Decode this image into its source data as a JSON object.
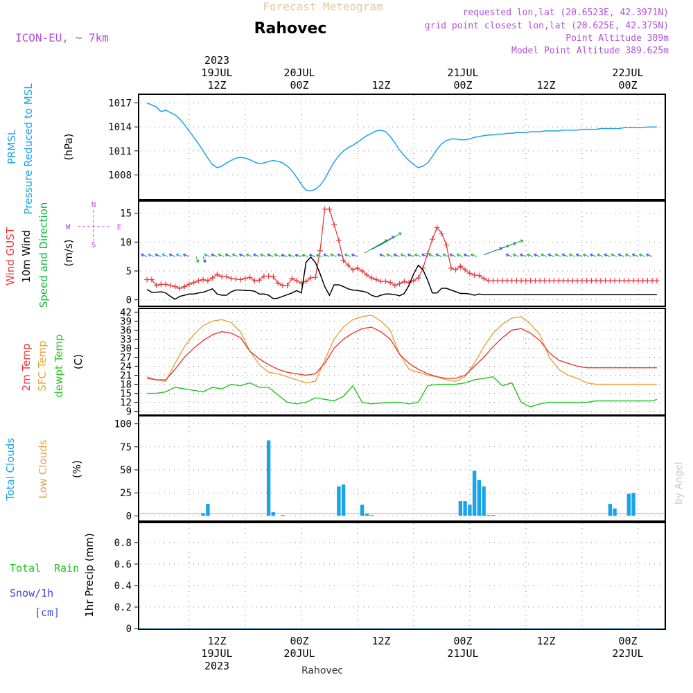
{
  "header": {
    "product": "Forecast Meteogram",
    "location": "Rahovec",
    "model": "ICON-EU, ~ 7km",
    "requested": "requested lon,lat (20.6523E, 42.3971N)",
    "grid_point": "grid point closest lon,lat (20.625E, 42.375N)",
    "point_altitude": "Point Altitude 389m",
    "model_altitude": "Model Point Altitude 389.625m",
    "credit": "by Angel",
    "footer_location": "Rahovec"
  },
  "time_axis": {
    "top_labels": [
      {
        "line1": "2023",
        "line2": "19JUL",
        "line3": "12Z"
      },
      {
        "line1": "",
        "line2": "20JUL",
        "line3": "00Z"
      },
      {
        "line1": "",
        "line2": "",
        "line3": "12Z"
      },
      {
        "line1": "",
        "line2": "21JUL",
        "line3": "00Z"
      },
      {
        "line1": "",
        "line2": "",
        "line3": "12Z"
      },
      {
        "line1": "",
        "line2": "22JUL",
        "line3": "00Z"
      }
    ],
    "bottom_labels": [
      {
        "line1": "12Z",
        "line2": "19JUL",
        "line3": "2023"
      },
      {
        "line1": "00Z",
        "line2": "20JUL",
        "line3": ""
      },
      {
        "line1": "12Z",
        "line2": "",
        "line3": ""
      },
      {
        "line1": "00Z",
        "line2": "21JUL",
        "line3": ""
      },
      {
        "line1": "12Z",
        "line2": "",
        "line3": ""
      },
      {
        "line1": "00Z",
        "line2": "22JUL",
        "line3": ""
      }
    ]
  },
  "colors": {
    "pressure": "#1ba3e8",
    "gust": "#e8383b",
    "wind": "#000000",
    "direction": "#11b53b",
    "temp2m": "#e8383b",
    "sfc_temp": "#e5a33a",
    "dewpt": "#22c322",
    "total_clouds": "#1ba3e8",
    "low_clouds": "#e5a33a",
    "rain": "#22c322",
    "snow": "#3b48e8",
    "header_purple": "#b24fd8",
    "product_title": "#e8c89a"
  },
  "chart_data": [
    {
      "type": "line",
      "panel": "pressure",
      "labels": {
        "a": "PRMSL",
        "b": "Pressure Reduced to MSL",
        "unit": "(hPa)"
      },
      "yticks": [
        1008,
        1011,
        1014,
        1017
      ],
      "ylim": [
        1005.0,
        1018.0
      ],
      "x_hours": [
        -9,
        -7,
        -6,
        -5,
        -4,
        -3,
        -2,
        -1,
        0,
        1,
        2,
        3,
        4,
        5,
        6,
        7,
        8,
        9,
        10,
        11,
        12,
        13,
        14,
        15,
        16,
        17,
        18,
        19,
        20,
        21,
        22,
        23,
        24,
        25,
        26,
        27,
        28,
        29,
        30,
        31,
        32,
        33,
        34,
        35,
        36,
        37,
        38,
        39,
        40,
        41,
        42,
        43,
        44,
        45,
        46,
        47,
        48,
        49,
        50,
        51,
        52,
        53,
        54,
        55,
        56,
        57,
        58,
        59,
        60,
        61,
        62,
        63,
        64,
        65,
        66,
        67,
        68,
        69,
        70,
        71,
        72,
        73,
        74,
        75,
        76,
        77,
        78,
        79,
        80,
        81,
        82,
        83,
        84,
        85,
        86,
        87,
        88,
        89,
        90,
        91,
        92,
        93,
        94,
        95,
        96,
        97,
        98,
        99,
        100
      ],
      "series": [
        {
          "values": [
            1017.0,
            1016.5,
            1015.9,
            1016.1,
            1015.8,
            1015.5,
            1015.0,
            1014.3,
            1013.5,
            1012.7,
            1011.9,
            1011.0,
            1010.1,
            1009.3,
            1008.9,
            1009.1,
            1009.5,
            1009.8,
            1010.1,
            1010.2,
            1010.1,
            1009.9,
            1009.6,
            1009.4,
            1009.5,
            1009.7,
            1009.8,
            1009.7,
            1009.5,
            1009.1,
            1008.5,
            1007.7,
            1006.8,
            1006.1,
            1006.0,
            1006.2,
            1006.7,
            1007.5,
            1008.6,
            1009.6,
            1010.4,
            1011.0,
            1011.4,
            1011.7,
            1012.1,
            1012.5,
            1012.9,
            1013.2,
            1013.5,
            1013.6,
            1013.4,
            1012.8,
            1012.0,
            1011.1,
            1010.4,
            1009.8,
            1009.3,
            1008.9,
            1009.1,
            1009.5,
            1010.3,
            1011.2,
            1011.9,
            1012.3,
            1012.5,
            1012.5,
            1012.4,
            1012.4,
            1012.5,
            1012.7,
            1012.8,
            1012.9,
            1013.0,
            1013.0,
            1013.1,
            1013.1,
            1013.2,
            1013.2,
            1013.3,
            1013.3,
            1013.3,
            1013.4,
            1013.4,
            1013.4,
            1013.5,
            1013.5,
            1013.5,
            1013.5,
            1013.6,
            1013.6,
            1013.6,
            1013.6,
            1013.7,
            1013.7,
            1013.7,
            1013.7,
            1013.8,
            1013.8,
            1013.8,
            1013.8,
            1013.8,
            1013.9,
            1013.9,
            1013.9,
            1013.9,
            1013.9,
            1014.0,
            1014.0,
            1014.0
          ]
        }
      ]
    },
    {
      "type": "line",
      "panel": "wind",
      "labels": {
        "gust": "Wind GUST",
        "wind": "10m Wind",
        "dir": "Speed and Direction",
        "unit": "(m/s)",
        "compass_n": "N",
        "compass_s": "S",
        "compass_w": "W",
        "compass_e": "E"
      },
      "yticks": [
        0,
        5,
        10,
        15
      ],
      "ylim": [
        -1.0,
        17.0
      ],
      "x_hours": [
        -9,
        -8,
        -7,
        -6,
        -5,
        -4,
        -3,
        -2,
        -1,
        0,
        1,
        2,
        3,
        4,
        5,
        6,
        7,
        8,
        9,
        10,
        11,
        12,
        13,
        14,
        15,
        16,
        17,
        18,
        19,
        20,
        21,
        22,
        23,
        24,
        25,
        26,
        27,
        28,
        29,
        30,
        31,
        32,
        33,
        34,
        35,
        36,
        37,
        38,
        39,
        40,
        41,
        42,
        43,
        44,
        45,
        46,
        47,
        48,
        49,
        50,
        51,
        52,
        53,
        54,
        55,
        56,
        57,
        58,
        59,
        60,
        61,
        62,
        63,
        64,
        65,
        66,
        67,
        68,
        69,
        70,
        71,
        72,
        73,
        74,
        75,
        76,
        77,
        78,
        79,
        80,
        81,
        82,
        83,
        84,
        85,
        86,
        87,
        88,
        89,
        90,
        91,
        92,
        93,
        94,
        95,
        96,
        97,
        98,
        99,
        100
      ],
      "series": [
        {
          "name": "Wind GUST",
          "values": [
            3.5,
            3.5,
            2.5,
            2.7,
            2.7,
            2.5,
            2.3,
            2.0,
            2.3,
            2.7,
            3.0,
            3.3,
            3.5,
            3.3,
            3.8,
            4.4,
            4.0,
            4.0,
            3.7,
            3.6,
            3.5,
            3.7,
            3.9,
            3.3,
            3.4,
            4.1,
            4.1,
            4.0,
            2.9,
            2.5,
            2.5,
            3.7,
            3.3,
            2.9,
            3.2,
            3.8,
            3.9,
            8.5,
            15.7,
            15.7,
            13.0,
            10.3,
            6.8,
            6.0,
            5.2,
            5.5,
            5.0,
            4.3,
            3.8,
            3.5,
            3.2,
            3.2,
            3.0,
            2.5,
            2.8,
            3.2,
            3.0,
            3.3,
            3.8,
            5.5,
            8.0,
            10.5,
            12.5,
            11.5,
            9.5,
            5.5,
            5.2,
            5.8,
            5.2,
            4.6,
            4.3,
            4.2,
            3.7,
            3.3,
            3.3,
            3.3,
            3.3,
            3.3,
            3.3,
            3.3,
            3.3,
            3.3,
            3.3,
            3.3,
            3.3,
            3.3,
            3.3,
            3.3,
            3.3,
            3.3,
            3.3,
            3.3,
            3.3,
            3.3,
            3.3,
            3.3,
            3.3,
            3.3,
            3.3,
            3.3,
            3.3,
            3.3,
            3.3,
            3.3,
            3.3,
            3.3,
            3.3,
            3.3,
            3.3,
            3.3
          ]
        },
        {
          "name": "10m Wind",
          "values": [
            1.8,
            1.3,
            1.3,
            1.4,
            1.2,
            0.6,
            0.1,
            0.6,
            0.8,
            1.0,
            1.0,
            1.2,
            1.3,
            1.6,
            1.9,
            1.0,
            0.8,
            0.8,
            1.4,
            1.7,
            1.7,
            1.6,
            1.6,
            1.5,
            1.0,
            1.0,
            0.8,
            0.2,
            0.3,
            0.6,
            0.9,
            1.2,
            1.6,
            1.2,
            6.5,
            7.4,
            6.5,
            4.5,
            2.3,
            0.8,
            2.6,
            2.6,
            2.3,
            1.9,
            1.7,
            1.6,
            1.5,
            1.3,
            0.8,
            0.5,
            0.8,
            1.0,
            1.0,
            0.9,
            0.7,
            1.1,
            2.5,
            4.5,
            6.0,
            5.2,
            3.4,
            1.2,
            1.2,
            2.0,
            2.0,
            1.7,
            1.4,
            1.1,
            1.1,
            1.0,
            0.8,
            1.0,
            0.9,
            0.9,
            0.9,
            0.9,
            0.9,
            0.9,
            0.9,
            0.9,
            0.9,
            0.9,
            0.9,
            0.9,
            0.9,
            0.9,
            0.9,
            0.9,
            0.9,
            0.9,
            0.9,
            0.9,
            0.9,
            0.9,
            0.9,
            0.9,
            0.9,
            0.9,
            0.9,
            0.9,
            0.9,
            0.9,
            0.9,
            0.9,
            0.9,
            0.9,
            0.9,
            0.9,
            0.9,
            0.9
          ]
        }
      ]
    },
    {
      "type": "line",
      "panel": "temperature",
      "labels": {
        "t2m": "2m Temp",
        "sfc": "SFC Temp",
        "dew": "dewpt Temp",
        "unit": "(C)"
      },
      "yticks": [
        9,
        12,
        15,
        18,
        21,
        24,
        27,
        30,
        33,
        36,
        39,
        42
      ],
      "ylim": [
        8.0,
        43.0
      ],
      "x_hours": [
        -9,
        -7,
        -5,
        -3,
        -1,
        1,
        3,
        5,
        7,
        9,
        11,
        13,
        15,
        17,
        19,
        21,
        23,
        25,
        27,
        29,
        31,
        33,
        35,
        37,
        39,
        41,
        43,
        45,
        47,
        49,
        51,
        53,
        55,
        57,
        59,
        61,
        63,
        65,
        67,
        69,
        71,
        73,
        75,
        77,
        79,
        81,
        83,
        85,
        87,
        89,
        91,
        93,
        95,
        97,
        99,
        100
      ],
      "series": [
        {
          "name": "2m Temp",
          "values": [
            20.0,
            19.5,
            19.5,
            23.0,
            27.0,
            30.0,
            32.5,
            34.5,
            35.5,
            35.0,
            33.5,
            29.0,
            26.5,
            24.5,
            23.0,
            22.0,
            21.5,
            21.0,
            21.5,
            25.0,
            30.0,
            33.0,
            35.0,
            36.5,
            37.0,
            35.5,
            33.0,
            28.0,
            25.0,
            23.0,
            21.5,
            20.5,
            20.0,
            20.0,
            21.0,
            24.0,
            27.0,
            30.5,
            33.5,
            36.0,
            36.5,
            35.0,
            32.5,
            28.5,
            26.0,
            25.0,
            24.0,
            23.5,
            23.5,
            23.5,
            23.5,
            23.5,
            23.5,
            23.5,
            23.5,
            23.5
          ]
        },
        {
          "name": "SFC Temp",
          "values": [
            20.5,
            19.5,
            19.0,
            25.0,
            30.5,
            34.5,
            37.5,
            39.0,
            39.5,
            38.5,
            35.5,
            29.0,
            24.5,
            22.0,
            21.5,
            20.5,
            19.5,
            18.5,
            19.0,
            26.0,
            33.0,
            37.0,
            39.5,
            40.5,
            41.0,
            39.0,
            36.0,
            28.0,
            23.0,
            22.0,
            21.0,
            20.5,
            19.5,
            19.0,
            20.5,
            25.0,
            30.5,
            35.0,
            38.0,
            40.0,
            40.5,
            38.0,
            34.5,
            27.0,
            23.0,
            21.0,
            20.0,
            18.5,
            18.0,
            18.0,
            18.0,
            18.0,
            18.0,
            18.0,
            18.0,
            18.0
          ]
        },
        {
          "name": "dewpt Temp",
          "values": [
            15.0,
            15.0,
            15.5,
            17.0,
            16.5,
            16.0,
            15.5,
            17.0,
            16.5,
            18.0,
            17.5,
            18.5,
            17.0,
            17.0,
            14.5,
            12.0,
            11.5,
            12.0,
            13.5,
            13.0,
            12.5,
            14.0,
            17.5,
            12.0,
            11.5,
            11.8,
            12.0,
            12.0,
            11.5,
            12.0,
            17.5,
            18.0,
            18.0,
            18.0,
            18.5,
            19.5,
            20.0,
            20.5,
            17.5,
            18.5,
            12.0,
            10.5,
            11.5,
            12.0,
            12.0,
            12.0,
            12.0,
            12.0,
            12.5,
            12.5,
            12.5,
            12.5,
            12.5,
            12.5,
            12.5,
            13.0
          ]
        }
      ]
    },
    {
      "type": "bar",
      "panel": "clouds",
      "labels": {
        "total": "Total Clouds",
        "low": "Low Clouds",
        "unit": "(%)"
      },
      "yticks": [
        0,
        25,
        50,
        75,
        100
      ],
      "ylim": [
        -5,
        108
      ],
      "x_hours": [
        3,
        4,
        17,
        18,
        20,
        32,
        33,
        37,
        38,
        39,
        58,
        59,
        60,
        61,
        62,
        63,
        64,
        65,
        90,
        91,
        94,
        95
      ],
      "series": [
        {
          "name": "Total Clouds",
          "values": [
            3,
            13,
            82,
            4,
            1,
            32,
            34,
            12,
            2,
            1,
            16,
            16,
            12,
            49,
            39,
            32,
            1,
            1,
            13,
            8,
            24,
            25
          ]
        }
      ]
    },
    {
      "type": "bar",
      "panel": "precip",
      "labels": {
        "total": "Total",
        "rain": "Rain",
        "snow": "Snow/1h",
        "cm": "[cm]",
        "unit": "1hr Precip (mm)"
      },
      "yticks": [
        0,
        0.2,
        0.4,
        0.6,
        0.8
      ],
      "ylim": [
        0,
        0.98
      ],
      "x_hours": [],
      "series": [
        {
          "name": "Total Rain",
          "values": []
        }
      ]
    }
  ]
}
